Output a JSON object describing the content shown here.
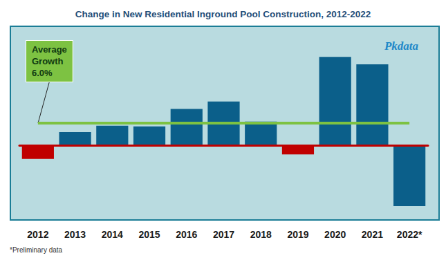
{
  "chart_data": {
    "type": "bar",
    "title": "Change in New Residential Inground Pool Construction, 2012-2022",
    "categories": [
      "2012",
      "2013",
      "2014",
      "2015",
      "2016",
      "2017",
      "2018",
      "2019",
      "2020",
      "2021",
      "2022*"
    ],
    "values": [
      -3.6,
      3.6,
      5.3,
      5.1,
      9.8,
      11.8,
      6.4,
      -2.4,
      23.8,
      21.8,
      -16.3
    ],
    "colors": [
      "#c00000",
      "#0b5f8a",
      "#0b5f8a",
      "#0b5f8a",
      "#0b5f8a",
      "#0b5f8a",
      "#0b5f8a",
      "#c00000",
      "#0b5f8a",
      "#0b5f8a",
      "#0b5f8a"
    ],
    "ylim": [
      -20,
      32
    ],
    "grid": false,
    "tick_labels": "x",
    "data_labels": false,
    "average": {
      "value": 6.0,
      "label": "Average\nGrowth\n6.0%",
      "color": "#7dc242"
    },
    "logo": "Pkdata",
    "footnote": "*Preliminary data"
  }
}
